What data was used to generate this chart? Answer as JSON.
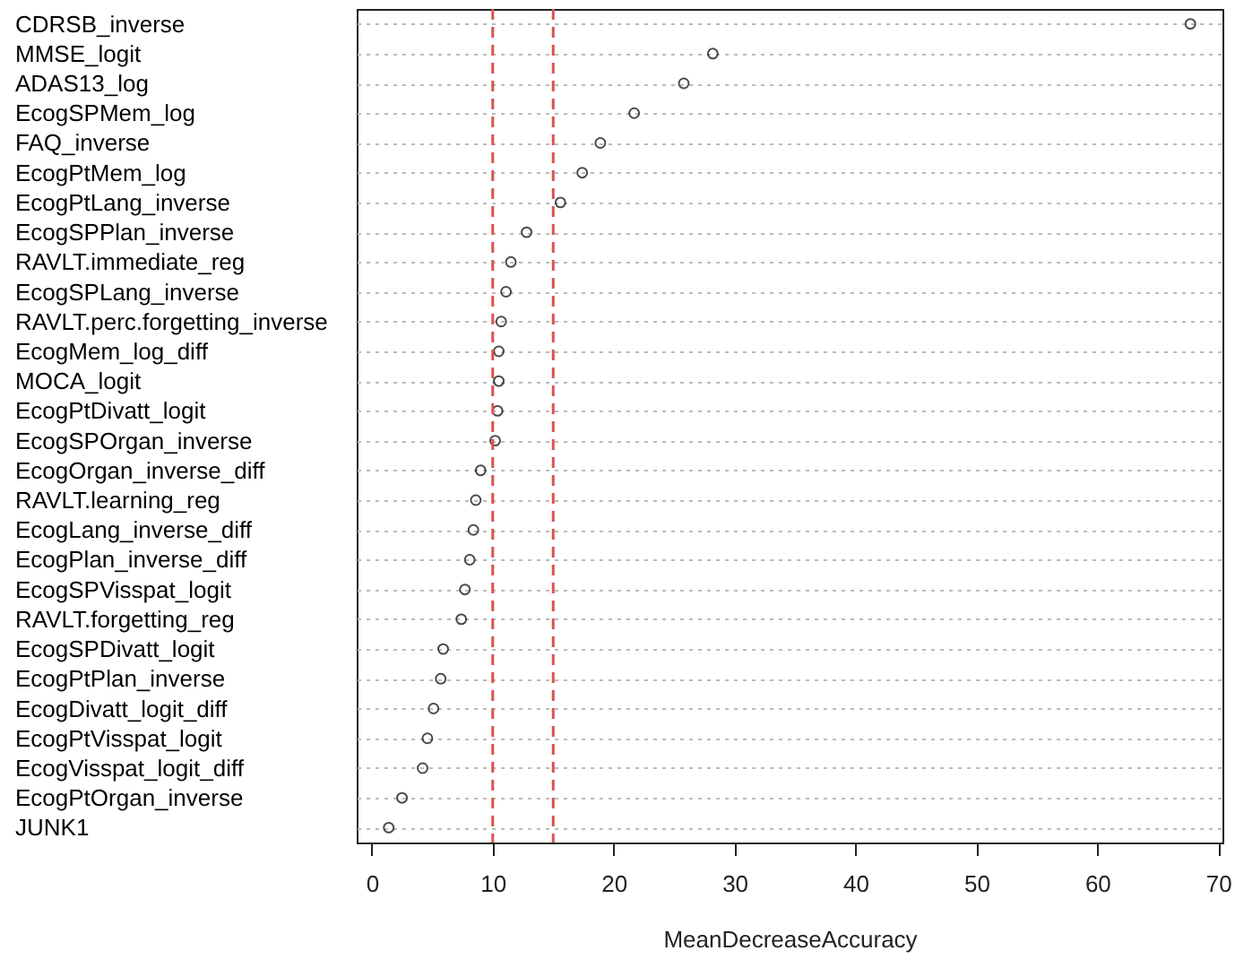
{
  "chart_data": {
    "type": "scatter",
    "orientation": "horizontal",
    "xlabel": "MeanDecreaseAccuracy",
    "categories": [
      "CDRSB_inverse",
      "MMSE_logit",
      "ADAS13_log",
      "EcogSPMem_log",
      "FAQ_inverse",
      "EcogPtMem_log",
      "EcogPtLang_inverse",
      "EcogSPPlan_inverse",
      "RAVLT.immediate_reg",
      "EcogSPLang_inverse",
      "RAVLT.perc.forgetting_inverse",
      "EcogMem_log_diff",
      "MOCA_logit",
      "EcogPtDivatt_logit",
      "EcogSPOrgan_inverse",
      "EcogOrgan_inverse_diff",
      "RAVLT.learning_reg",
      "EcogLang_inverse_diff",
      "EcogPlan_inverse_diff",
      "EcogSPVisspat_logit",
      "RAVLT.forgetting_reg",
      "EcogSPDivatt_logit",
      "EcogPtPlan_inverse",
      "EcogDivatt_logit_diff",
      "EcogPtVisspat_logit",
      "EcogVisspat_logit_diff",
      "EcogPtOrgan_inverse",
      "JUNK1"
    ],
    "series": [
      {
        "color": "#000000",
        "values": [
          67.7,
          28.2,
          25.8,
          21.7,
          18.9,
          17.4,
          15.6,
          12.8,
          11.5,
          11.1,
          10.7,
          10.5,
          10.5,
          10.4,
          10.2,
          9.0,
          8.6,
          8.4,
          8.1,
          7.7,
          7.4,
          5.9,
          5.7,
          5.1,
          4.6,
          4.2,
          2.5,
          1.4
        ]
      }
    ],
    "xlim": [
      -1.25,
      70.35
    ],
    "xticks": [
      0,
      10,
      20,
      30,
      40,
      50,
      60,
      70
    ],
    "ref_lines": [
      {
        "axis": "x",
        "value": 10,
        "color": "#d9534f",
        "line_style": "dashed"
      },
      {
        "axis": "x",
        "value": 15,
        "color": "#d9534f",
        "line_style": "dashed"
      }
    ],
    "grid": "y",
    "marker": "circle"
  }
}
